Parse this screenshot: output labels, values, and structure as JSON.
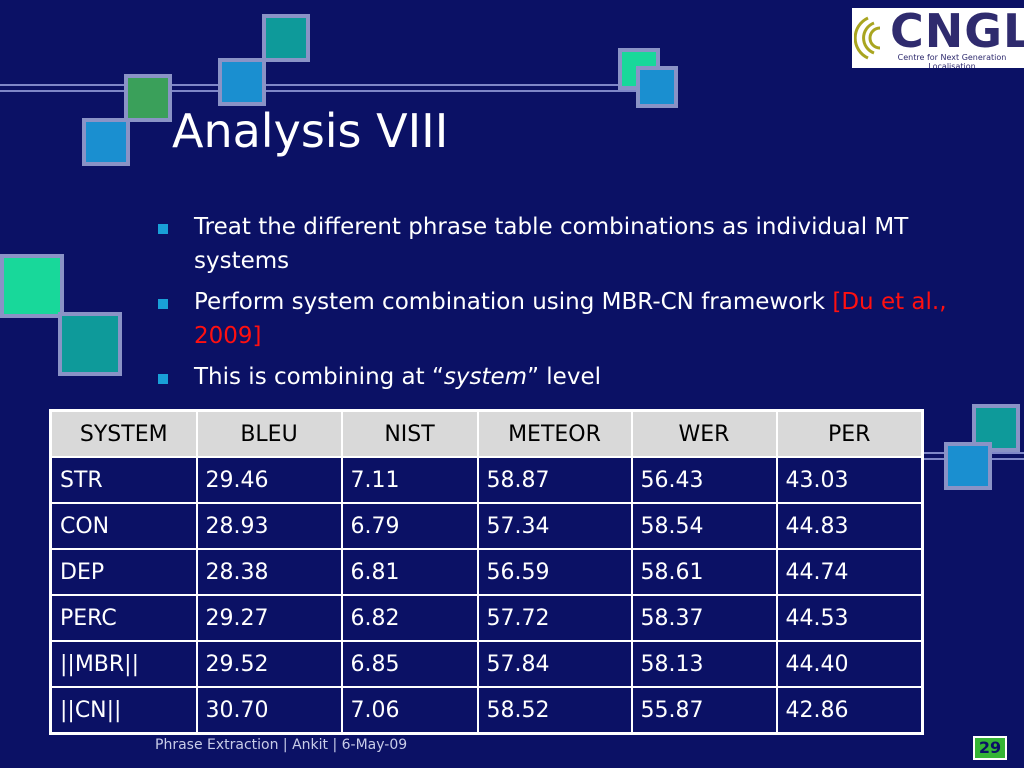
{
  "logo": {
    "text": "CNGL",
    "subtitle": "Centre for Next Generation Localisation"
  },
  "slide": {
    "title": "Analysis VIII",
    "bullets": [
      {
        "text": "Treat the different phrase table combinations as individual MT systems"
      },
      {
        "text": "Perform system combination using MBR-CN framework ",
        "citation": "[Du et al., 2009]"
      },
      {
        "prefix": "This is combining at “",
        "emphasis": "system",
        "suffix": "” level"
      }
    ]
  },
  "table": {
    "headers": [
      "SYSTEM",
      "BLEU",
      "NIST",
      "METEOR",
      "WER",
      "PER"
    ],
    "rows": [
      [
        "STR",
        "29.46",
        "7.11",
        "58.87",
        "56.43",
        "43.03"
      ],
      [
        "CON",
        "28.93",
        "6.79",
        "57.34",
        "58.54",
        "44.83"
      ],
      [
        "DEP",
        "28.38",
        "6.81",
        "56.59",
        "58.61",
        "44.74"
      ],
      [
        "PERC",
        "29.27",
        "6.82",
        "57.72",
        "58.37",
        "44.53"
      ],
      [
        "||MBR||",
        "29.52",
        "6.85",
        "57.84",
        "58.13",
        "44.40"
      ],
      [
        "||CN||",
        "30.70",
        "7.06",
        "58.52",
        "55.87",
        "42.86"
      ]
    ]
  },
  "footer": {
    "text": "Phrase Extraction | Ankit | 6-May-09",
    "page_number": "29"
  },
  "colors": {
    "background": "#0b1165",
    "bullet": "#19a0d8",
    "citation": "#ff1010",
    "header_fill": "#d9d9d9",
    "page_badge": "#35b535"
  }
}
